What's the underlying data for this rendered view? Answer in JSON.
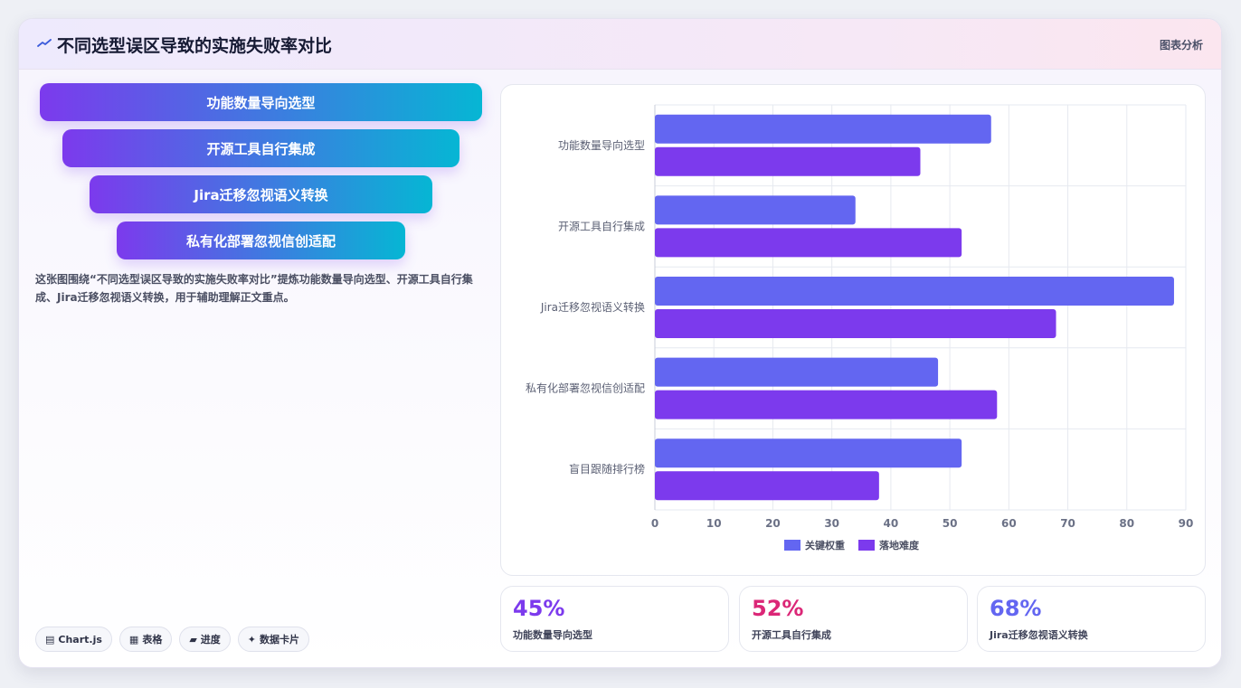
{
  "header": {
    "title": "不同选型误区导致的实施失败率对比",
    "tag": "图表分析"
  },
  "funnel": [
    {
      "label": "功能数量导向选型"
    },
    {
      "label": "开源工具自行集成"
    },
    {
      "label": "Jira迁移忽视语义转换"
    },
    {
      "label": "私有化部署忽视信创适配"
    }
  ],
  "description": "这张图围绕“不同选型误区导致的实施失败率对比”提炼功能数量导向选型、开源工具自行集成、Jira迁移忽视语义转换，用于辅助理解正文重点。",
  "chips": [
    {
      "icon": "▤",
      "label": "Chart.js"
    },
    {
      "icon": "▦",
      "label": "表格"
    },
    {
      "icon": "▰",
      "label": "进度"
    },
    {
      "icon": "✦",
      "label": "数据卡片"
    }
  ],
  "stats": [
    {
      "value": "45%",
      "label": "功能数量导向选型",
      "color": "#7c3aed"
    },
    {
      "value": "52%",
      "label": "开源工具自行集成",
      "color": "#db2777"
    },
    {
      "value": "68%",
      "label": "Jira迁移忽视语义转换",
      "color": "#6366f1"
    }
  ],
  "chart_data": {
    "type": "bar",
    "orientation": "horizontal",
    "categories": [
      "功能数量导向选型",
      "开源工具自行集成",
      "Jira迁移忽视语义转换",
      "私有化部署忽视信创适配",
      "盲目跟随排行榜"
    ],
    "series": [
      {
        "name": "关键权重",
        "values": [
          57,
          34,
          88,
          48,
          52
        ],
        "color": "#6366f1"
      },
      {
        "name": "落地难度",
        "values": [
          45,
          52,
          68,
          58,
          38
        ],
        "color": "#7c3aed"
      }
    ],
    "xlim": [
      0,
      90
    ],
    "ticks": [
      0,
      10,
      20,
      30,
      40,
      50,
      60,
      70,
      80,
      90
    ],
    "grid": true,
    "legend": "bottom"
  }
}
